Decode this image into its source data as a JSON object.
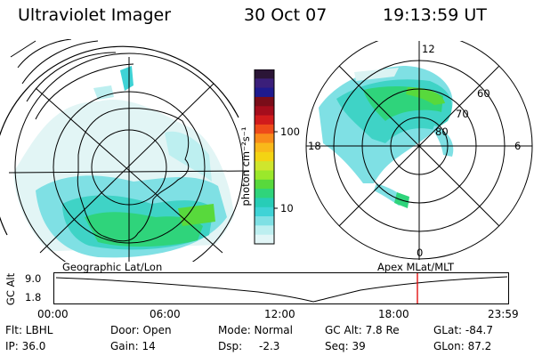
{
  "header": {
    "instrument": "Ultraviolet Imager",
    "date": "30 Oct 07",
    "time": "19:13:59 UT"
  },
  "colorbar": {
    "unit_label": "photon cm⁻²s⁻¹",
    "ticks": [
      "100",
      "10"
    ],
    "colors": [
      "#2b1536",
      "#3b1f7a",
      "#1f1a8f",
      "#7a0d19",
      "#a50d1c",
      "#d11b1c",
      "#ee4b1a",
      "#f98b1a",
      "#f9b91a",
      "#f3d413",
      "#cfe62d",
      "#9be82b",
      "#58d93c",
      "#2fd47b",
      "#27cdb7",
      "#3fd3d6",
      "#7fe0e4",
      "#bdeff0",
      "#e2f6f7"
    ]
  },
  "left_map": {
    "caption": "Geographic Lat/Lon"
  },
  "right_map": {
    "caption": "Apex MLat/MLT",
    "mlt_labels": {
      "top": "12",
      "left": "18",
      "right": "6",
      "bottom": "0"
    },
    "lat_labels": [
      "60",
      "70",
      "80"
    ]
  },
  "altitude_plot": {
    "ylabel": "GC Alt",
    "yticks": [
      "9.0",
      "1.8"
    ],
    "xticks": [
      "00:00",
      "06:00",
      "12:00",
      "18:00",
      "23:59"
    ],
    "marker_color": "#e00000"
  },
  "status": {
    "filter": "Flt: LBHL",
    "ip": "IP: 36.0",
    "door": "Door: Open",
    "gain": "Gain: 14",
    "mode": "Mode: Normal",
    "dsp_label": "Dsp:",
    "dsp_value": "-2.3",
    "gc_alt": "GC Alt: 7.8 Re",
    "seq": "Seq: 39",
    "glat": "GLat: -84.7",
    "glon": "GLon: 87.2"
  }
}
